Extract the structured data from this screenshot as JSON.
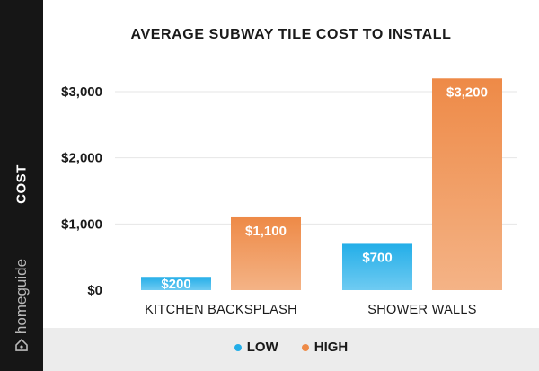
{
  "brand": {
    "logo_text": "homeguide"
  },
  "legend_items": [
    {
      "label": "LOW",
      "color": "#23aee8"
    },
    {
      "label": "HIGH",
      "color": "#ee8a47"
    }
  ],
  "chart_data": {
    "type": "bar",
    "title": "AVERAGE SUBWAY TILE COST TO INSTALL",
    "xlabel": "",
    "ylabel": "COST",
    "categories": [
      "KITCHEN BACKSPLASH",
      "SHOWER WALLS"
    ],
    "series": [
      {
        "name": "LOW",
        "values": [
          200,
          700
        ],
        "labels": [
          "$200",
          "$700"
        ],
        "color_top": "#23aee8",
        "color_bottom": "#6fcbf2"
      },
      {
        "name": "HIGH",
        "values": [
          1100,
          3200
        ],
        "labels": [
          "$1,100",
          "$3,200"
        ],
        "color_top": "#ee8a47",
        "color_bottom": "#f4b386"
      }
    ],
    "ylim": [
      0,
      3000
    ],
    "yticks": [
      0,
      1000,
      2000,
      3000
    ],
    "ytick_labels": [
      "$0",
      "$1,000",
      "$2,000",
      "$3,000"
    ],
    "grid": true,
    "legend": "bottom"
  }
}
